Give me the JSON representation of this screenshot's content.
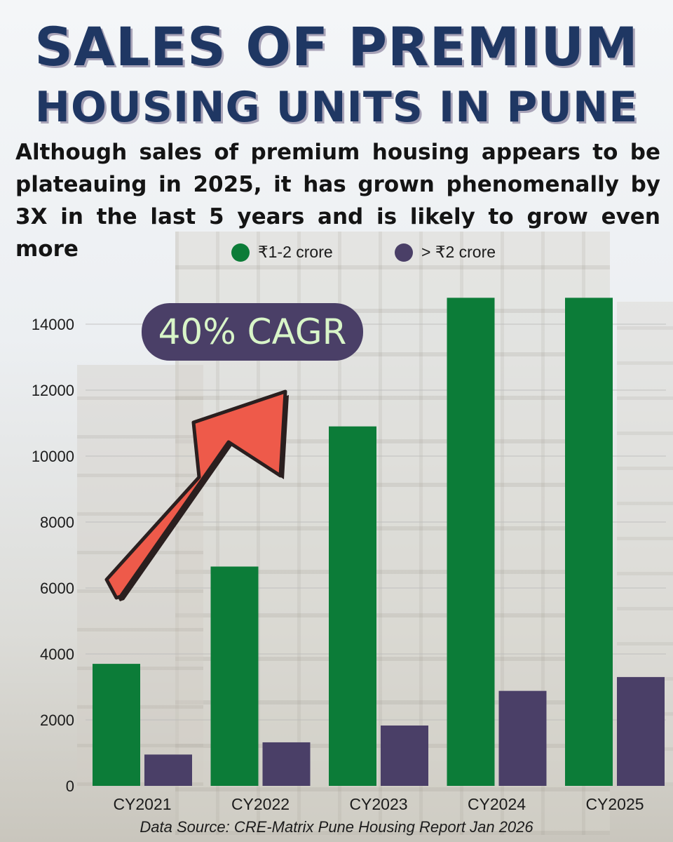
{
  "title_line1": "SALES OF PREMIUM",
  "title_line2": "HOUSING UNITS IN PUNE",
  "subtitle": "Although sales of premium housing appears to be plateauing in 2025, it has grown phenomenally by 3X in the last 5 years and is likely to grow even more",
  "annotation": "40% CAGR",
  "source": "Data Source: CRE-Matrix Pune Housing Report Jan 2026",
  "colors": {
    "title": "#1f3763",
    "series1": "#0c7c38",
    "series2": "#4a3f67",
    "arrow": "#ee5a4a",
    "annotation_bg": "#4a3f67"
  },
  "chart_data": {
    "type": "bar",
    "categories": [
      "CY2021",
      "CY2022",
      "CY2023",
      "CY2024",
      "CY2025"
    ],
    "series": [
      {
        "name": "₹1-2 crore",
        "values": [
          3700,
          6650,
          10900,
          14800,
          14800
        ]
      },
      {
        "name": "> ₹2 crore",
        "values": [
          950,
          1320,
          1830,
          2880,
          3300
        ]
      }
    ],
    "y_ticks": [
      "0",
      "2000",
      "4000",
      "6000",
      "8000",
      "10000",
      "12000",
      "14000"
    ],
    "ylim": [
      0,
      14000
    ],
    "legend_position": "top",
    "grid": true
  }
}
